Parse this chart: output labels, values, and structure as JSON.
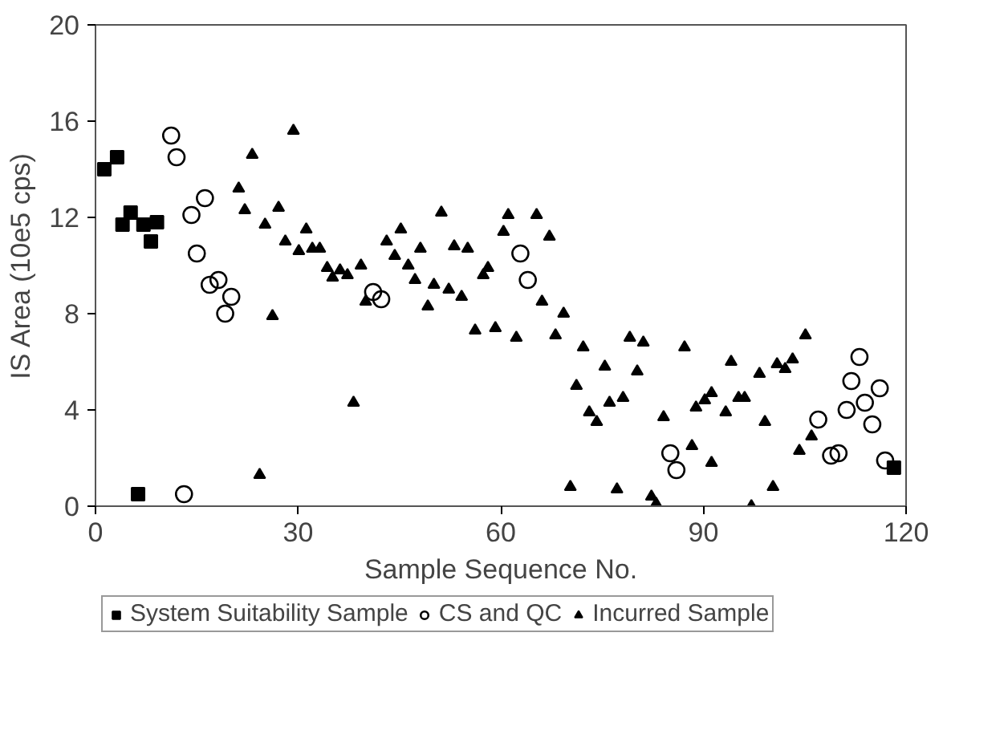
{
  "chart_data": {
    "type": "scatter",
    "xlabel": "Sample Sequence No.",
    "ylabel": "IS Area (10e5 cps)",
    "xlim": [
      0,
      120
    ],
    "ylim": [
      0,
      20
    ],
    "xticks": [
      0,
      30,
      60,
      90,
      120
    ],
    "yticks": [
      0,
      4,
      8,
      12,
      16,
      20
    ],
    "grid": false,
    "legend": "bottom",
    "series": [
      {
        "name": "System Suitability Sample",
        "color": "#000000",
        "marker": "square",
        "x": [
          1.3,
          3.2,
          4.0,
          5.2,
          7.1,
          9.1,
          8.2,
          6.3,
          118.2
        ],
        "values": [
          14.0,
          14.5,
          11.7,
          12.2,
          11.7,
          11.8,
          11.0,
          0.5,
          1.6
        ]
      },
      {
        "name": "CS and QC",
        "color": "#000000",
        "marker": "circle",
        "x": [
          11.2,
          12.0,
          16.2,
          14.2,
          15.0,
          16.9,
          18.2,
          20.1,
          19.2,
          13.1,
          41.1,
          42.3,
          62.9,
          64.0,
          85.1,
          86.0,
          107.0,
          108.9,
          110.0,
          111.2,
          111.9,
          113.1,
          113.9,
          115.0,
          116.1,
          116.9
        ],
        "values": [
          15.4,
          14.5,
          12.8,
          12.1,
          10.5,
          9.2,
          9.4,
          8.7,
          8.0,
          0.5,
          8.9,
          8.6,
          10.5,
          9.4,
          2.2,
          1.5,
          3.6,
          2.1,
          2.2,
          4.0,
          5.2,
          6.2,
          4.3,
          3.4,
          4.9,
          1.9
        ]
      },
      {
        "name": "Incurred Sample",
        "color": "#000000",
        "marker": "triangle",
        "x": [
          29.3,
          23.2,
          21.2,
          22.1,
          27.1,
          25.1,
          28.1,
          31.2,
          30.1,
          32.1,
          33.2,
          34.3,
          35.1,
          36.2,
          37.3,
          39.3,
          40.0,
          26.2,
          38.2,
          24.3,
          45.2,
          43.1,
          44.3,
          46.3,
          47.3,
          48.1,
          49.2,
          50.1,
          51.2,
          52.3,
          53.1,
          55.1,
          54.2,
          56.2,
          57.4,
          58.1,
          59.2,
          60.4,
          61.1,
          62.3,
          65.3,
          67.2,
          66.1,
          68.1,
          69.3,
          72.2,
          75.4,
          79.1,
          80.2,
          71.2,
          73.1,
          74.2,
          76.1,
          78.1,
          70.3,
          77.2,
          81.1,
          87.2,
          84.1,
          82.3,
          83.0,
          88.3,
          91.2,
          88.9,
          90.2,
          91.2,
          94.1,
          93.3,
          95.2,
          96.1,
          97.1,
          98.3,
          99.1,
          100.3,
          100.9,
          102.1,
          103.2,
          105.1,
          106.0,
          104.2
        ],
        "values": [
          15.6,
          14.6,
          13.2,
          12.3,
          12.4,
          11.7,
          11.0,
          11.5,
          10.6,
          10.7,
          10.7,
          9.9,
          9.5,
          9.8,
          9.6,
          10.0,
          8.5,
          7.9,
          4.3,
          1.3,
          11.5,
          11.0,
          10.4,
          10.0,
          9.4,
          10.7,
          8.3,
          9.2,
          12.2,
          9.0,
          10.8,
          10.7,
          8.7,
          7.3,
          9.6,
          9.9,
          7.4,
          11.4,
          12.1,
          7.0,
          12.1,
          11.2,
          8.5,
          7.1,
          8.0,
          6.6,
          5.8,
          7.0,
          5.6,
          5.0,
          3.9,
          3.5,
          4.3,
          4.5,
          0.8,
          0.7,
          6.8,
          6.6,
          3.7,
          0.4,
          0.1,
          2.5,
          1.8,
          4.1,
          4.4,
          4.7,
          6.0,
          3.9,
          4.5,
          4.5,
          0.0,
          5.5,
          3.5,
          0.8,
          5.9,
          5.7,
          6.1,
          7.1,
          2.9,
          2.3
        ]
      }
    ]
  }
}
